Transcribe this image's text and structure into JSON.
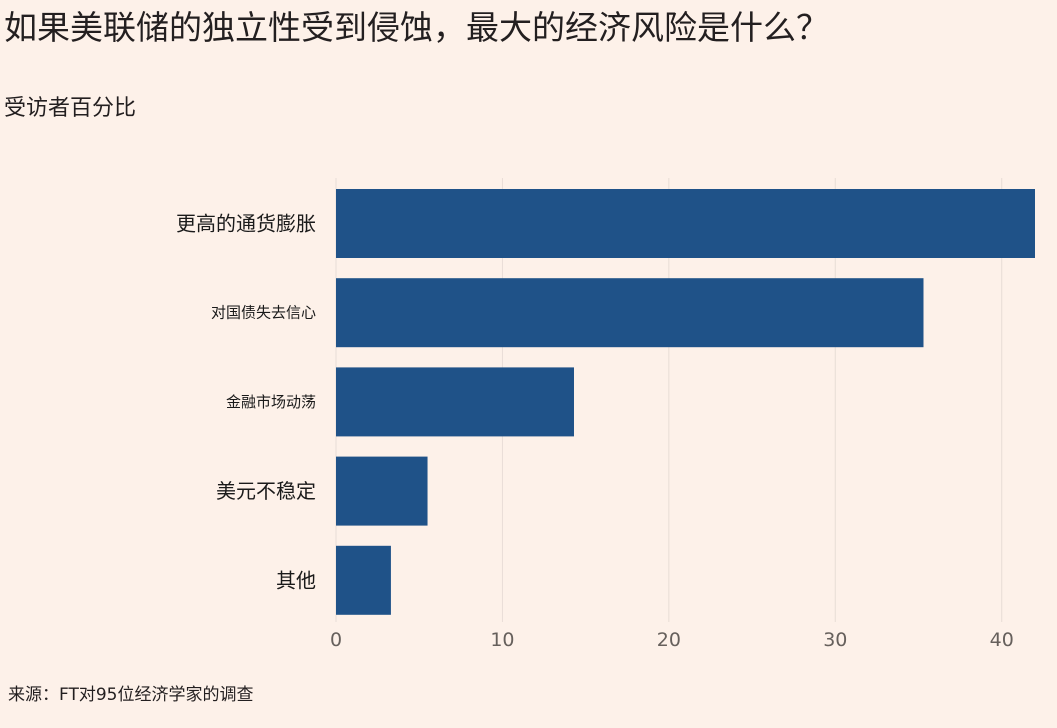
{
  "header": {
    "title": "如果美联储的独立性受到侵蚀，最大的经济风险是什么？",
    "subtitle": "受访者百分比"
  },
  "footer": {
    "source": "来源：FT对95位经济学家的调查"
  },
  "colors": {
    "background": "#fdf1e9",
    "bar": "#1f5288",
    "grid": "#e8ddd6",
    "axis_text": "#66605c"
  },
  "chart_data": {
    "type": "bar",
    "orientation": "horizontal",
    "categories": [
      "更高的通货膨胀",
      "对国债失去信心",
      "金融市场动荡",
      "美元不稳定",
      "其他"
    ],
    "values": [
      42,
      35.3,
      14.3,
      5.5,
      3.3
    ],
    "title": "如果美联储的独立性受到侵蚀，最大的经济风险是什么？",
    "subtitle": "受访者百分比",
    "xlabel": "",
    "ylabel": "",
    "xlim": [
      0,
      42
    ],
    "xticks": [
      0,
      10,
      20,
      30,
      40
    ],
    "grid": true,
    "legend": "none"
  }
}
